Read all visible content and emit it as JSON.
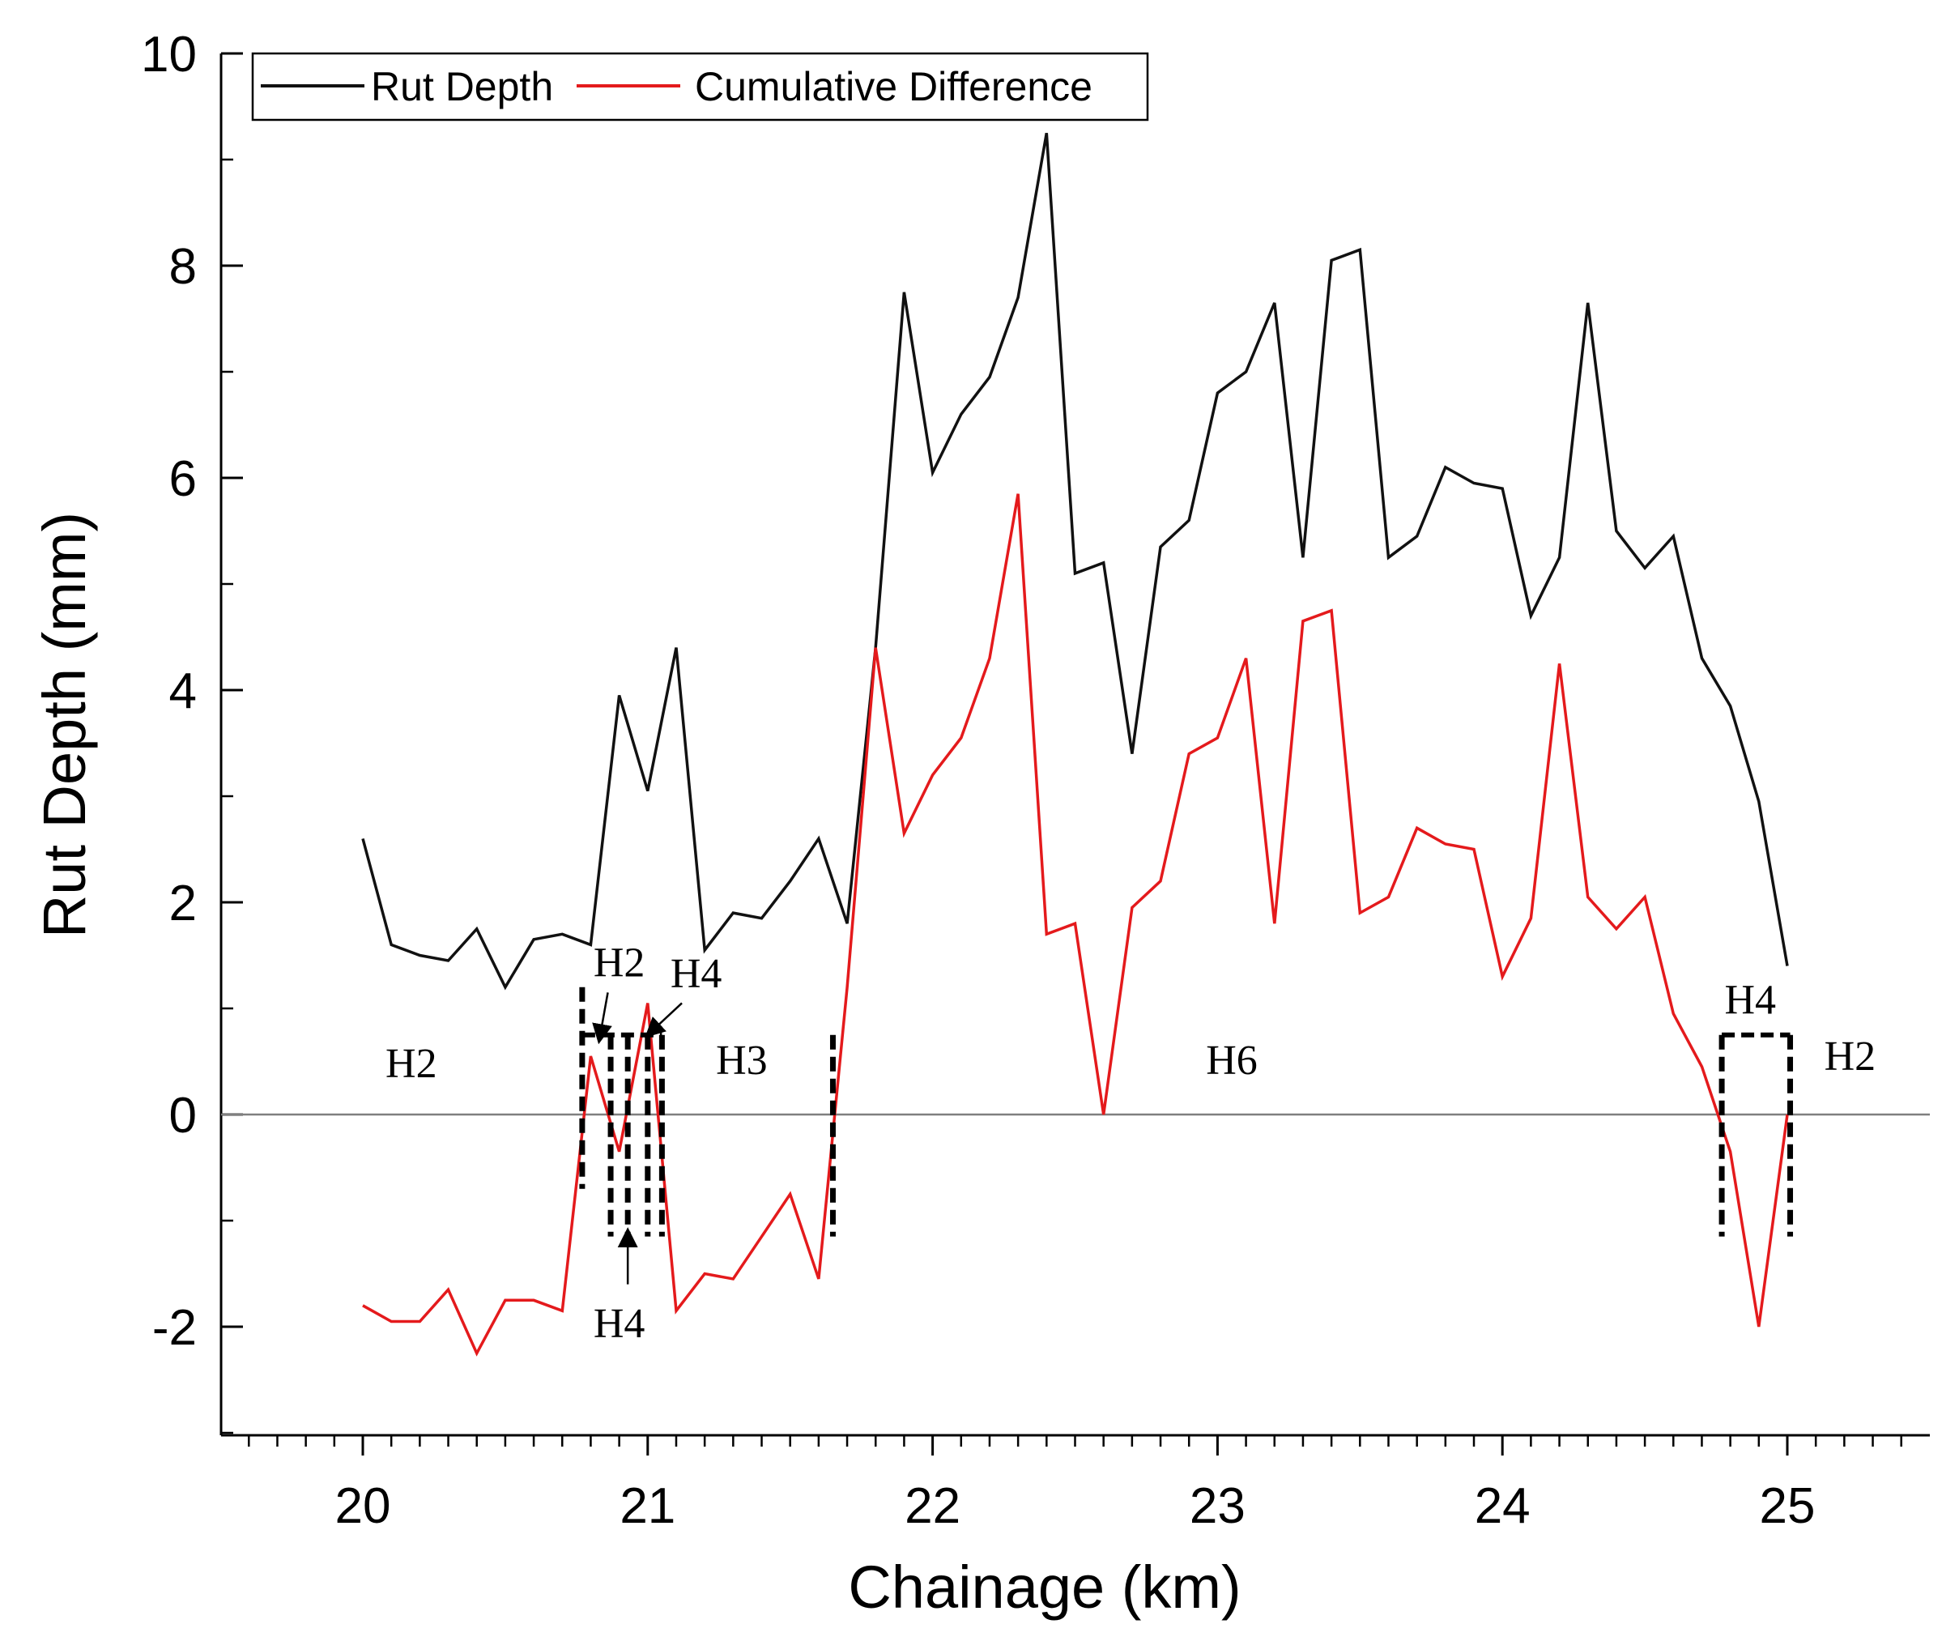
{
  "chart_data": {
    "type": "line",
    "title": "",
    "xlabel": "Chainage (km)",
    "ylabel": "Rut Depth (mm)",
    "xlim": [
      19.5,
      25.5
    ],
    "ylim": [
      -3,
      10
    ],
    "xticks": [
      "20",
      "21",
      "22",
      "23",
      "24",
      "25"
    ],
    "yticks": [
      "-2",
      "0",
      "2",
      "4",
      "6",
      "8",
      "10"
    ],
    "legend": {
      "position": "top-left",
      "entries": [
        "Rut Depth",
        "Cumulative Difference"
      ]
    },
    "colors": {
      "rut_depth": "#111111",
      "cumulative_difference": "#e41a1c",
      "zero_line": "#7f7f7f"
    },
    "series": [
      {
        "name": "Rut Depth",
        "x": [
          20.0,
          20.1,
          20.2,
          20.3,
          20.4,
          20.5,
          20.6,
          20.7,
          20.8,
          20.9,
          21.0,
          21.1,
          21.2,
          21.3,
          21.4,
          21.5,
          21.6,
          21.7,
          21.8,
          21.9,
          22.0,
          22.1,
          22.2,
          22.3,
          22.4,
          22.5,
          22.6,
          22.7,
          22.8,
          22.9,
          23.0,
          23.1,
          23.2,
          23.3,
          23.4,
          23.5,
          23.6,
          23.7,
          23.8,
          23.9,
          24.0,
          24.1,
          24.2,
          24.3,
          24.4,
          24.5,
          24.6,
          24.7,
          24.8,
          24.9,
          25.0
        ],
        "values": [
          2.6,
          1.6,
          1.5,
          1.45,
          1.75,
          1.2,
          1.65,
          1.7,
          1.6,
          3.95,
          3.05,
          4.4,
          1.55,
          1.9,
          1.85,
          2.2,
          2.6,
          1.8,
          4.4,
          7.75,
          6.05,
          6.6,
          6.95,
          7.7,
          9.25,
          5.1,
          5.2,
          3.4,
          5.35,
          5.6,
          6.8,
          7.0,
          7.65,
          5.25,
          8.05,
          8.15,
          5.25,
          5.45,
          6.1,
          5.95,
          5.9,
          4.7,
          5.25,
          7.65,
          5.5,
          5.15,
          5.45,
          4.3,
          3.85,
          2.95,
          1.4
        ]
      },
      {
        "name": "Cumulative Difference",
        "x": [
          20.0,
          20.1,
          20.2,
          20.3,
          20.4,
          20.5,
          20.6,
          20.7,
          20.8,
          20.9,
          21.0,
          21.1,
          21.2,
          21.3,
          21.4,
          21.5,
          21.6,
          21.7,
          21.8,
          21.9,
          22.0,
          22.1,
          22.2,
          22.3,
          22.4,
          22.5,
          22.6,
          22.7,
          22.8,
          22.9,
          23.0,
          23.1,
          23.2,
          23.3,
          23.4,
          23.5,
          23.6,
          23.7,
          23.8,
          23.9,
          24.0,
          24.1,
          24.2,
          24.3,
          24.4,
          24.5,
          24.6,
          24.7,
          24.8,
          24.9,
          25.0
        ],
        "values": [
          -1.8,
          -1.95,
          -1.95,
          -1.65,
          -2.25,
          -1.75,
          -1.75,
          -1.85,
          0.55,
          -0.35,
          1.05,
          -1.85,
          -1.5,
          -1.55,
          -1.15,
          -0.75,
          -1.55,
          1.2,
          4.4,
          2.65,
          3.2,
          3.55,
          4.3,
          5.85,
          1.7,
          1.8,
          0.0,
          1.95,
          2.2,
          3.4,
          3.55,
          4.3,
          1.8,
          4.65,
          4.75,
          1.9,
          2.05,
          2.7,
          2.55,
          2.5,
          1.3,
          1.85,
          4.25,
          2.05,
          1.75,
          2.05,
          0.95,
          0.45,
          -0.35,
          -2.0,
          0.0
        ]
      }
    ],
    "segment_labels": [
      {
        "text": "H2",
        "x": 20.17,
        "y": 0.35
      },
      {
        "text": "H2",
        "x": 20.9,
        "y": 1.3
      },
      {
        "text": "H4",
        "x": 21.17,
        "y": 1.2
      },
      {
        "text": "H3",
        "x": 21.33,
        "y": 0.38
      },
      {
        "text": "H4",
        "x": 20.9,
        "y": -2.1
      },
      {
        "text": "H6",
        "x": 23.05,
        "y": 0.38
      },
      {
        "text": "H4",
        "x": 24.87,
        "y": 0.95
      },
      {
        "text": "H2",
        "x": 25.22,
        "y": 0.42
      }
    ],
    "segment_boundaries": [
      {
        "x": 20.77,
        "y_from": 1.2,
        "y_to": -0.7
      },
      {
        "x": 20.87,
        "y_from": 0.75,
        "y_to": -1.15
      },
      {
        "x": 20.93,
        "y_from": 0.75,
        "y_to": -1.15
      },
      {
        "x": 21.0,
        "y_from": 0.75,
        "y_to": -1.15
      },
      {
        "x": 21.05,
        "y_from": 0.75,
        "y_to": -1.15
      },
      {
        "x": 21.65,
        "y_from": 0.75,
        "y_to": -1.15
      },
      {
        "x": 24.77,
        "y_from": 0.75,
        "y_to": -1.15
      },
      {
        "x": 25.01,
        "y_from": 0.75,
        "y_to": -1.15
      }
    ],
    "segment_tops": [
      {
        "x1": 20.77,
        "x2": 21.05,
        "y": 0.75
      },
      {
        "x1": 24.77,
        "x2": 25.01,
        "y": 0.75
      }
    ],
    "arrows": [
      {
        "from_x": 20.86,
        "from_y": 1.15,
        "to_x": 20.83,
        "to_y": 0.7
      },
      {
        "from_x": 21.12,
        "from_y": 1.05,
        "to_x": 21.0,
        "to_y": 0.75
      },
      {
        "from_x": 20.93,
        "from_y": -1.6,
        "to_x": 20.93,
        "to_y": -1.1
      }
    ]
  }
}
